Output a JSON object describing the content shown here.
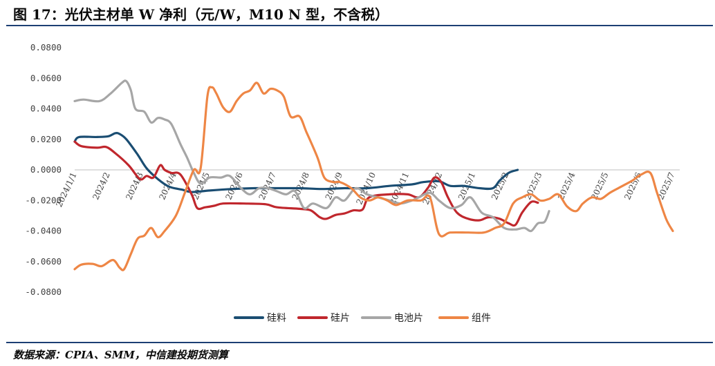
{
  "title": "图 17：光伏主材单 W 净利（元/W，M10 N 型，不含税）",
  "source": "数据来源：CPIA、SMM，中信建投期货测算",
  "chart_data": {
    "type": "line",
    "ylim": [
      -0.08,
      0.08
    ],
    "yticks": [
      "0.0800",
      "0.0600",
      "0.0400",
      "0.0200",
      "0.0000",
      "-0.0200",
      "-0.0400",
      "-0.0600",
      "-0.0800"
    ],
    "ytick_values": [
      0.08,
      0.06,
      0.04,
      0.02,
      0,
      -0.02,
      -0.04,
      -0.06,
      -0.08
    ],
    "xticks": [
      "2024/1/1",
      "2024/2",
      "2024/3",
      "2024/4",
      "2024/5",
      "2024/6",
      "2024/7",
      "2024/8",
      "2024/9",
      "2024/10",
      "2024/11",
      "2024/12",
      "2025/1",
      "2025/2",
      "2025/3",
      "2025/4",
      "2025/5",
      "2025/6",
      "2025/7"
    ],
    "legend_position": "bottom",
    "grid": false,
    "series": [
      {
        "name": "硅料",
        "color": "#1a4d72",
        "values": [
          [
            0,
            0.0185
          ],
          [
            0.2,
            0.0215
          ],
          [
            1,
            0.0215
          ],
          [
            1.5,
            0.022
          ],
          [
            1.8,
            0.024
          ],
          [
            2,
            0.0235
          ],
          [
            2.3,
            0.02
          ],
          [
            2.8,
            0.01
          ],
          [
            3.2,
            0.001
          ],
          [
            3.7,
            -0.006
          ],
          [
            4.2,
            -0.011
          ],
          [
            4.8,
            -0.013
          ],
          [
            5.2,
            -0.0145
          ],
          [
            6,
            -0.0135
          ],
          [
            7,
            -0.0125
          ],
          [
            8,
            -0.012
          ],
          [
            9,
            -0.012
          ],
          [
            10,
            -0.012
          ],
          [
            11,
            -0.0125
          ],
          [
            12,
            -0.012
          ],
          [
            13,
            -0.012
          ],
          [
            14,
            -0.0105
          ],
          [
            15,
            -0.0095
          ],
          [
            15.5,
            -0.008
          ],
          [
            16.2,
            -0.0075
          ],
          [
            16.7,
            -0.0105
          ],
          [
            17.3,
            -0.0105
          ],
          [
            18,
            -0.012
          ],
          [
            18.6,
            -0.012
          ],
          [
            18.9,
            -0.007
          ],
          [
            19.3,
            -0.002
          ],
          [
            19.7,
            0
          ]
        ]
      },
      {
        "name": "硅片",
        "color": "#c0272d",
        "values": [
          [
            0,
            0.0185
          ],
          [
            0.3,
            0.0155
          ],
          [
            1,
            0.0145
          ],
          [
            1.4,
            0.015
          ],
          [
            1.8,
            0.011
          ],
          [
            2.4,
            0.003
          ],
          [
            2.9,
            -0.006
          ],
          [
            3.2,
            -0.004
          ],
          [
            3.5,
            -0.005
          ],
          [
            3.8,
            0.003
          ],
          [
            4,
            0
          ],
          [
            4.3,
            -0.002
          ],
          [
            4.7,
            -0.003
          ],
          [
            5.2,
            -0.016
          ],
          [
            5.45,
            -0.025
          ],
          [
            5.8,
            -0.0245
          ],
          [
            6.2,
            -0.0235
          ],
          [
            6.6,
            -0.022
          ],
          [
            7.5,
            -0.022
          ],
          [
            8.5,
            -0.0225
          ],
          [
            9,
            -0.0245
          ],
          [
            10,
            -0.0255
          ],
          [
            10.5,
            -0.0265
          ],
          [
            10.9,
            -0.031
          ],
          [
            11.2,
            -0.032
          ],
          [
            11.6,
            -0.0295
          ],
          [
            12,
            -0.0285
          ],
          [
            12.4,
            -0.0265
          ],
          [
            12.8,
            -0.026
          ],
          [
            13.1,
            -0.018
          ],
          [
            14,
            -0.016
          ],
          [
            14.8,
            -0.016
          ],
          [
            15.3,
            -0.018
          ],
          [
            15.7,
            -0.012
          ],
          [
            16,
            -0.005
          ],
          [
            16.3,
            -0.008
          ],
          [
            16.6,
            -0.018
          ],
          [
            17,
            -0.028
          ],
          [
            17.5,
            -0.032
          ],
          [
            18,
            -0.033
          ],
          [
            18.4,
            -0.031
          ],
          [
            18.9,
            -0.032
          ],
          [
            19.3,
            -0.035
          ],
          [
            19.6,
            -0.036
          ],
          [
            19.9,
            -0.028
          ],
          [
            20.3,
            -0.021
          ],
          [
            20.6,
            -0.0215
          ]
        ]
      },
      {
        "name": "电池片",
        "color": "#a6a6a6",
        "values": [
          [
            0,
            0.045
          ],
          [
            0.4,
            0.046
          ],
          [
            1.1,
            0.045
          ],
          [
            1.6,
            0.05
          ],
          [
            2.1,
            0.057
          ],
          [
            2.3,
            0.058
          ],
          [
            2.5,
            0.052
          ],
          [
            2.7,
            0.04
          ],
          [
            3.1,
            0.038
          ],
          [
            3.4,
            0.031
          ],
          [
            3.7,
            0.034
          ],
          [
            4,
            0.033
          ],
          [
            4.3,
            0.03
          ],
          [
            4.7,
            0.017
          ],
          [
            5,
            0.008
          ],
          [
            5.3,
            -0.002
          ],
          [
            5.6,
            -0.009
          ],
          [
            6,
            -0.005
          ],
          [
            6.5,
            -0.005
          ],
          [
            6.9,
            -0.004
          ],
          [
            7.4,
            -0.012
          ],
          [
            7.8,
            -0.016
          ],
          [
            8.2,
            -0.012
          ],
          [
            8.6,
            -0.012
          ],
          [
            9,
            -0.014
          ],
          [
            9.4,
            -0.016
          ],
          [
            9.8,
            -0.014
          ],
          [
            10.2,
            -0.025
          ],
          [
            10.6,
            -0.022
          ],
          [
            11.2,
            -0.025
          ],
          [
            11.6,
            -0.018
          ],
          [
            12,
            -0.02
          ],
          [
            12.5,
            -0.012
          ],
          [
            13,
            -0.016
          ],
          [
            13.5,
            -0.018
          ],
          [
            14,
            -0.02
          ],
          [
            14.5,
            -0.022
          ],
          [
            15,
            -0.02
          ],
          [
            15.3,
            -0.018
          ],
          [
            15.8,
            -0.015
          ],
          [
            16.2,
            -0.02
          ],
          [
            16.7,
            -0.025
          ],
          [
            17.2,
            -0.023
          ],
          [
            17.6,
            -0.018
          ],
          [
            18.1,
            -0.028
          ],
          [
            18.6,
            -0.031
          ],
          [
            19.1,
            -0.038
          ],
          [
            19.6,
            -0.039
          ],
          [
            20,
            -0.038
          ],
          [
            20.3,
            -0.04
          ],
          [
            20.6,
            -0.035
          ],
          [
            20.9,
            -0.034
          ],
          [
            21.1,
            -0.027
          ]
        ]
      },
      {
        "name": "组件",
        "color": "#ee8645",
        "values": [
          [
            0,
            -0.065
          ],
          [
            0.3,
            -0.062
          ],
          [
            0.8,
            -0.0615
          ],
          [
            1.2,
            -0.063
          ],
          [
            1.7,
            -0.059
          ],
          [
            2,
            -0.064
          ],
          [
            2.2,
            -0.065
          ],
          [
            2.5,
            -0.055
          ],
          [
            2.8,
            -0.045
          ],
          [
            3.1,
            -0.043
          ],
          [
            3.4,
            -0.038
          ],
          [
            3.7,
            -0.044
          ],
          [
            4,
            -0.04
          ],
          [
            4.5,
            -0.03
          ],
          [
            4.9,
            -0.015
          ],
          [
            5.3,
            0
          ],
          [
            5.6,
            0.001
          ],
          [
            5.9,
            0.048
          ],
          [
            6.1,
            0.054
          ],
          [
            6.3,
            0.05
          ],
          [
            6.6,
            0.041
          ],
          [
            6.9,
            0.038
          ],
          [
            7.2,
            0.045
          ],
          [
            7.5,
            0.05
          ],
          [
            7.8,
            0.052
          ],
          [
            8.1,
            0.057
          ],
          [
            8.4,
            0.05
          ],
          [
            8.7,
            0.053
          ],
          [
            9,
            0.052
          ],
          [
            9.3,
            0.048
          ],
          [
            9.6,
            0.035
          ],
          [
            10,
            0.035
          ],
          [
            10.3,
            0.025
          ],
          [
            10.8,
            0.008
          ],
          [
            11.1,
            -0.005
          ],
          [
            11.5,
            -0.008
          ],
          [
            11.8,
            -0.008
          ],
          [
            12.3,
            -0.012
          ],
          [
            12.7,
            -0.018
          ],
          [
            13.1,
            -0.02
          ],
          [
            13.5,
            -0.018
          ],
          [
            13.9,
            -0.02
          ],
          [
            14.3,
            -0.023
          ],
          [
            14.8,
            -0.02
          ],
          [
            15.4,
            -0.02
          ],
          [
            15.8,
            -0.018
          ],
          [
            16.2,
            -0.042
          ],
          [
            16.7,
            -0.041
          ],
          [
            17.5,
            -0.041
          ],
          [
            18.2,
            -0.041
          ],
          [
            18.7,
            -0.038
          ],
          [
            19.1,
            -0.035
          ],
          [
            19.5,
            -0.022
          ],
          [
            19.9,
            -0.018
          ],
          [
            20.3,
            -0.016
          ],
          [
            20.7,
            -0.02
          ],
          [
            21.1,
            -0.019
          ],
          [
            21.5,
            -0.016
          ],
          [
            21.9,
            -0.024
          ],
          [
            22.3,
            -0.027
          ],
          [
            22.6,
            -0.022
          ],
          [
            23,
            -0.018
          ],
          [
            23.4,
            -0.019
          ],
          [
            23.8,
            -0.015
          ],
          [
            24.3,
            -0.011
          ],
          [
            24.8,
            -0.007
          ],
          [
            25.2,
            -0.003
          ],
          [
            25.6,
            -0.002
          ],
          [
            25.9,
            -0.015
          ],
          [
            26.3,
            -0.032
          ],
          [
            26.6,
            -0.04
          ]
        ]
      }
    ]
  }
}
